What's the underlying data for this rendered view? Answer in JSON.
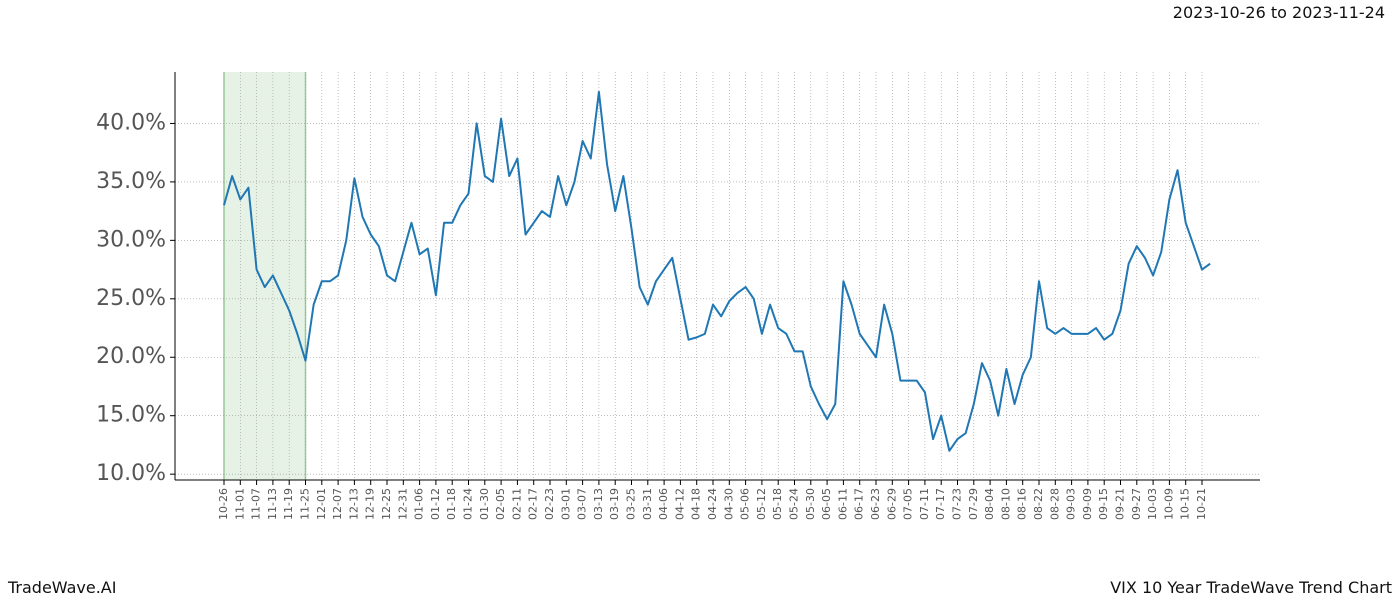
{
  "chart_data": {
    "type": "line",
    "title": "2023-10-26 to 2023-11-24",
    "brand": "TradeWave.AI",
    "caption": "VIX 10 Year TradeWave Trend Chart",
    "categories": [
      "10-26",
      null,
      "11-01",
      null,
      "11-07",
      null,
      "11-13",
      null,
      "11-19",
      null,
      "11-25",
      null,
      "12-01",
      null,
      "12-07",
      null,
      "12-13",
      null,
      "12-19",
      null,
      "12-25",
      null,
      "12-31",
      null,
      "01-06",
      null,
      "01-12",
      null,
      "01-18",
      null,
      "01-24",
      null,
      "01-30",
      null,
      "02-05",
      null,
      "02-11",
      null,
      "02-17",
      null,
      "02-23",
      null,
      "03-01",
      null,
      "03-07",
      null,
      "03-13",
      null,
      "03-19",
      null,
      "03-25",
      null,
      "03-31",
      null,
      "04-06",
      null,
      "04-12",
      null,
      "04-18",
      null,
      "04-24",
      null,
      "04-30",
      null,
      "05-06",
      null,
      "05-12",
      null,
      "05-18",
      null,
      "05-24",
      null,
      "05-30",
      null,
      "06-05",
      null,
      "06-11",
      null,
      "06-17",
      null,
      "06-23",
      null,
      "06-29",
      null,
      "07-05",
      null,
      "07-11",
      null,
      "07-17",
      null,
      "07-23",
      null,
      "07-29",
      null,
      "08-04",
      null,
      "08-10",
      null,
      "08-16",
      null,
      "08-22",
      null,
      "08-28",
      null,
      "09-03",
      null,
      "09-09",
      null,
      "09-15",
      null,
      "09-21",
      null,
      "09-27",
      null,
      "10-03",
      null,
      "10-09",
      null,
      "10-15",
      null,
      "10-21",
      null
    ],
    "series": [
      {
        "color": "#1f77b4",
        "values": [
          33,
          35.5,
          33.5,
          34.5,
          27.5,
          26,
          27,
          25.5,
          24,
          22,
          19.7,
          24.5,
          26.5,
          26.5,
          27,
          30,
          35.3,
          32,
          30.5,
          29.5,
          27,
          26.5,
          29,
          31.5,
          28.8,
          29.3,
          25.3,
          31.5,
          31.5,
          33,
          34,
          40,
          35.5,
          35,
          40.4,
          35.5,
          37,
          30.5,
          31.5,
          32.5,
          32,
          35.5,
          33,
          35,
          38.5,
          37,
          42.7,
          36.5,
          32.5,
          35.5,
          31,
          26,
          24.5,
          26.5,
          27.5,
          28.5,
          25,
          21.5,
          21.7,
          22,
          24.5,
          23.5,
          24.8,
          25.5,
          26,
          25,
          22,
          24.5,
          22.5,
          22,
          20.5,
          20.5,
          17.5,
          16,
          14.7,
          16,
          26.5,
          24.5,
          22,
          21,
          20,
          24.5,
          22,
          18,
          18,
          18,
          17,
          13,
          15,
          12,
          13,
          13.5,
          16,
          19.5,
          18,
          15,
          19,
          16,
          18.5,
          20,
          26.5,
          22.5,
          22,
          22.5,
          22,
          22,
          22,
          22.5,
          21.5,
          22,
          24,
          28,
          29.5,
          28.5,
          27,
          29,
          33.5,
          36,
          31.5,
          29.5,
          27.5,
          28
        ]
      }
    ],
    "highlight": {
      "from": "10-26",
      "to": "11-25",
      "color": "#d6e9d6"
    },
    "ylim": [
      9.5,
      44.4
    ],
    "yticks": [
      {
        "value": 10,
        "label": "10.0%"
      },
      {
        "value": 15,
        "label": "15.0%"
      },
      {
        "value": 20,
        "label": "20.0%"
      },
      {
        "value": 25,
        "label": "25.0%"
      },
      {
        "value": 30,
        "label": "30.0%"
      },
      {
        "value": 35,
        "label": "35.0%"
      },
      {
        "value": 40,
        "label": "40.0%"
      }
    ],
    "grid": true
  }
}
